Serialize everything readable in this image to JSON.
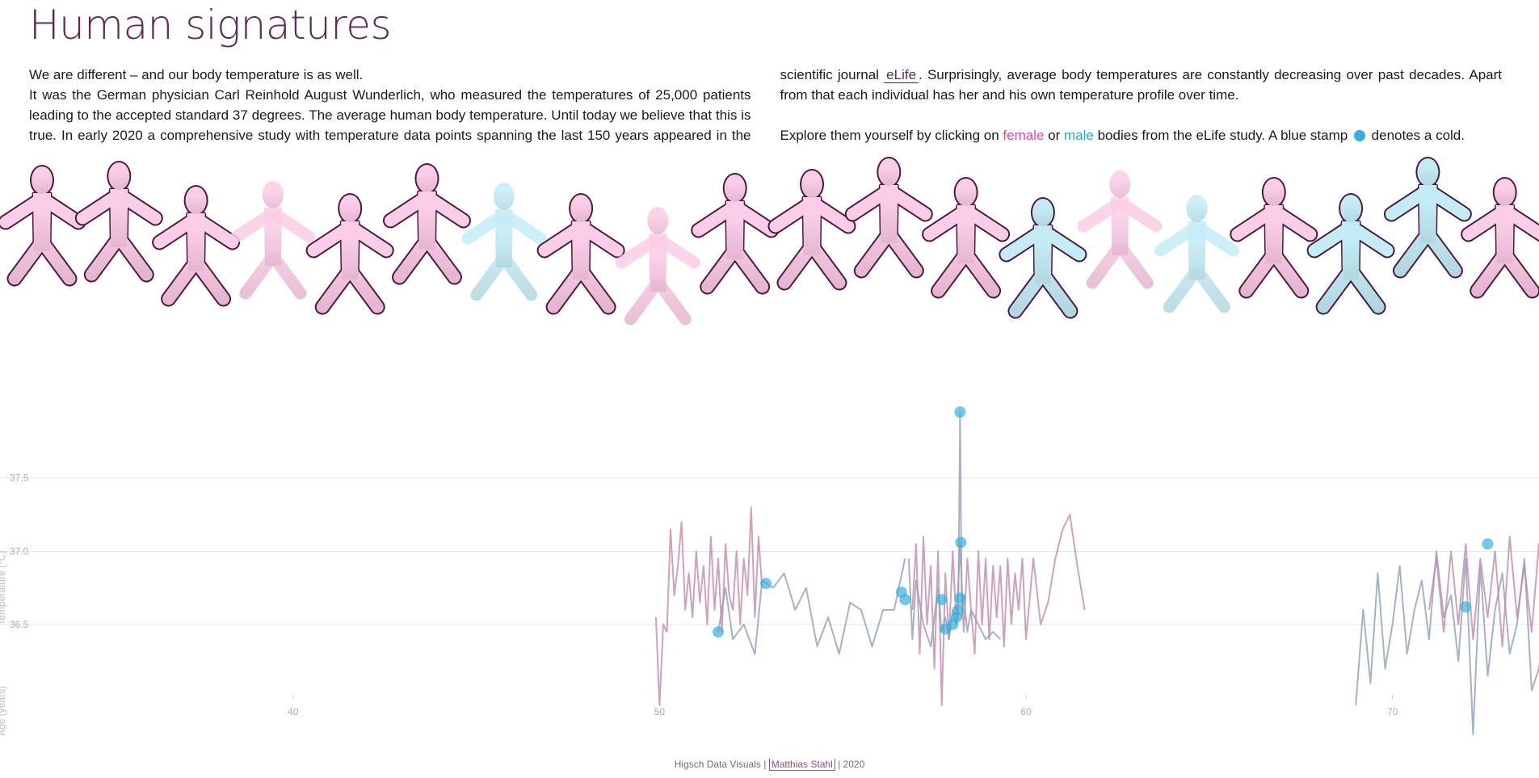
{
  "page": {
    "title": "Human signatures",
    "intro_line1": "We are different – and our body temperature is as well.",
    "intro_p2_pre": "It was the German physician Carl Reinhold August Wunderlich, who measured the temperatures of 25,000 patients leading to the accepted standard 37 degrees. The average human body temperature. Until today we believe that this is true. In early 2020 a comprehensive study with temperature data points spanning the last 150 years appeared in the scientific journal ",
    "intro_link": "eLife",
    "intro_p2_post": ". Surprisingly, average body temperatures are constantly decreasing over past decades. Apart from that each individual has her and his own temperature profile over time.",
    "explore_pre": "Explore them yourself by clicking on ",
    "explore_female": "female",
    "explore_or": " or ",
    "explore_male": "male",
    "explore_mid": " bodies from the eLife study. A blue stamp ",
    "explore_post": " denotes a cold."
  },
  "colors": {
    "title": "#5e2a55",
    "female_fill_top": "#fbcde6",
    "female_fill_bottom": "#e4b6cf",
    "male_fill_top": "#c4ecf7",
    "male_fill_bottom": "#b2d7e0",
    "outline": "#4b1a40",
    "female_line": "#c38aab",
    "male_line": "#8fa0b8",
    "stamp": "#37b0dd"
  },
  "bodies": [
    {
      "sex": "female",
      "outlined": true
    },
    {
      "sex": "female",
      "outlined": true
    },
    {
      "sex": "female",
      "outlined": true
    },
    {
      "sex": "female",
      "outlined": false
    },
    {
      "sex": "female",
      "outlined": true
    },
    {
      "sex": "female",
      "outlined": true
    },
    {
      "sex": "male",
      "outlined": false
    },
    {
      "sex": "female",
      "outlined": true
    },
    {
      "sex": "female",
      "outlined": false
    },
    {
      "sex": "female",
      "outlined": true
    },
    {
      "sex": "female",
      "outlined": true
    },
    {
      "sex": "female",
      "outlined": true
    },
    {
      "sex": "female",
      "outlined": true
    },
    {
      "sex": "male",
      "outlined": true
    },
    {
      "sex": "female",
      "outlined": false
    },
    {
      "sex": "male",
      "outlined": false
    },
    {
      "sex": "female",
      "outlined": true
    },
    {
      "sex": "male",
      "outlined": true
    },
    {
      "sex": "male",
      "outlined": true
    },
    {
      "sex": "female",
      "outlined": true
    }
  ],
  "chart_data": {
    "type": "line",
    "xlabel": "Age (years)",
    "ylabel": "Temperature (°C)",
    "xlim": [
      32,
      74
    ],
    "ylim": [
      35.8,
      37.95
    ],
    "xticks": [
      40,
      50,
      60,
      70
    ],
    "xtick_labels": [
      "40",
      "50",
      "60",
      "70"
    ],
    "yticks": [
      36.5,
      37.0,
      37.5
    ],
    "ytick_labels": [
      "36.5",
      "37.0",
      "37.5"
    ],
    "grid": true,
    "series": [
      {
        "sex": "female",
        "x": [
          49.9,
          50.0,
          50.1,
          50.2,
          50.3,
          50.4,
          50.5,
          50.6,
          50.7,
          50.8,
          50.9,
          51.0,
          51.1,
          51.2,
          51.3,
          51.4,
          51.5,
          51.6,
          51.7,
          51.8,
          51.9,
          52.0,
          52.1,
          52.2,
          52.3,
          52.4,
          52.5,
          52.6,
          52.7,
          52.8
        ],
        "y": [
          36.55,
          35.95,
          36.5,
          36.45,
          37.15,
          36.7,
          36.9,
          37.2,
          36.6,
          36.85,
          36.55,
          37.0,
          36.65,
          36.9,
          36.5,
          37.1,
          36.6,
          36.95,
          36.45,
          37.05,
          36.7,
          36.6,
          37.0,
          36.5,
          36.95,
          36.7,
          37.3,
          36.55,
          37.1,
          36.75
        ]
      },
      {
        "sex": "male",
        "x": [
          51.6,
          51.8,
          52.0,
          52.3,
          52.6,
          52.8,
          53.1,
          53.4,
          53.7,
          54.0,
          54.3,
          54.6,
          54.9,
          55.2,
          55.5,
          55.8,
          56.1,
          56.4,
          56.7
        ],
        "y": [
          36.45,
          36.75,
          36.4,
          36.5,
          36.3,
          36.8,
          36.75,
          36.85,
          36.6,
          36.75,
          36.35,
          36.55,
          36.3,
          36.65,
          36.6,
          36.35,
          36.6,
          36.6,
          36.95
        ]
      },
      {
        "sex": "female",
        "x": [
          56.9,
          57.0,
          57.1,
          57.2,
          57.3,
          57.4,
          57.5,
          57.6,
          57.7,
          57.8,
          57.9,
          58.0,
          58.1,
          58.2,
          58.3,
          58.4,
          58.5,
          58.6,
          58.7,
          58.8,
          58.9,
          59.0,
          59.1,
          59.2,
          59.3,
          59.4,
          59.5,
          59.6,
          59.7,
          59.8,
          59.9,
          60.0,
          60.2,
          60.4,
          60.6,
          60.8,
          61.0,
          61.2,
          61.4,
          61.6
        ],
        "y": [
          36.6,
          37.05,
          36.3,
          37.1,
          36.5,
          36.9,
          36.2,
          37.0,
          35.95,
          36.85,
          36.4,
          37.0,
          36.5,
          37.05,
          36.45,
          36.95,
          36.6,
          36.3,
          37.0,
          36.5,
          36.95,
          36.4,
          36.9,
          36.55,
          36.9,
          36.35,
          36.95,
          36.5,
          36.85,
          36.6,
          36.95,
          36.4,
          36.95,
          36.5,
          36.65,
          36.95,
          37.15,
          37.25,
          36.9,
          36.6
        ]
      },
      {
        "sex": "male",
        "x": [
          56.8,
          56.9,
          57.0,
          57.2,
          57.4,
          57.6,
          57.7,
          57.8,
          57.9,
          58.0,
          58.1,
          58.15,
          58.2,
          58.25,
          58.3,
          58.4,
          58.5,
          58.7,
          58.9,
          59.1,
          59.3
        ],
        "y": [
          36.95,
          36.4,
          36.8,
          36.5,
          36.35,
          36.75,
          36.45,
          36.55,
          36.4,
          36.6,
          36.5,
          36.55,
          37.95,
          36.55,
          36.7,
          36.45,
          36.6,
          36.5,
          36.4,
          36.45,
          36.4
        ]
      },
      {
        "sex": "male",
        "x": [
          69.0,
          69.2,
          69.4,
          69.6,
          69.8,
          70.0,
          70.2,
          70.4,
          70.6,
          70.8,
          71.0,
          71.2,
          71.4,
          71.6,
          71.8,
          72.0,
          72.2,
          72.4,
          72.6,
          72.8,
          73.0,
          73.2,
          73.4,
          73.6,
          73.8,
          74.0,
          74.2,
          74.4,
          74.6,
          74.8
        ],
        "y": [
          35.95,
          36.6,
          36.1,
          36.85,
          36.2,
          36.5,
          36.9,
          36.3,
          36.6,
          36.8,
          36.4,
          37.0,
          36.55,
          36.7,
          36.25,
          36.95,
          35.75,
          36.9,
          36.15,
          36.6,
          36.85,
          36.3,
          36.5,
          36.95,
          36.05,
          36.2,
          36.7,
          36.4,
          36.6,
          36.3
        ]
      },
      {
        "sex": "female",
        "x": [
          71.0,
          71.2,
          71.4,
          71.6,
          71.8,
          72.0,
          72.2,
          72.4,
          72.6,
          72.8,
          73.0,
          73.2,
          73.4,
          73.6,
          73.8,
          74.0,
          74.2,
          74.4,
          74.6
        ],
        "y": [
          36.6,
          36.95,
          36.45,
          37.0,
          36.5,
          37.05,
          36.4,
          36.95,
          36.55,
          37.0,
          36.35,
          37.1,
          36.55,
          36.9,
          36.45,
          37.05,
          36.5,
          36.95,
          36.6
        ]
      }
    ],
    "cold_stamps": [
      {
        "x": 51.6,
        "y": 36.45
      },
      {
        "x": 52.9,
        "y": 36.78
      },
      {
        "x": 56.6,
        "y": 36.72
      },
      {
        "x": 56.7,
        "y": 36.67
      },
      {
        "x": 57.7,
        "y": 36.67
      },
      {
        "x": 57.8,
        "y": 36.47
      },
      {
        "x": 58.0,
        "y": 36.5
      },
      {
        "x": 58.1,
        "y": 36.55
      },
      {
        "x": 58.15,
        "y": 36.6
      },
      {
        "x": 58.2,
        "y": 36.68
      },
      {
        "x": 58.22,
        "y": 37.06
      },
      {
        "x": 58.2,
        "y": 37.95
      },
      {
        "x": 72.0,
        "y": 36.62
      },
      {
        "x": 72.6,
        "y": 37.05
      }
    ]
  },
  "footer": {
    "org": "Higsch Data Visuals |",
    "author": "Matthias Stahl",
    "year": "| 2020"
  }
}
